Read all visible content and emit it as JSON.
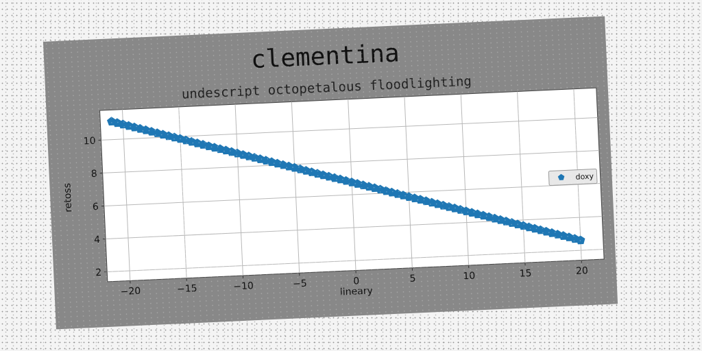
{
  "chart_data": {
    "type": "scatter",
    "title": "clementina",
    "subtitle": "undescript octopetalous floodlighting",
    "xlabel": "lineary",
    "ylabel": "retoss",
    "xlim": [
      -22,
      22
    ],
    "ylim": [
      1.4,
      11.8
    ],
    "xticks": [
      -20,
      -15,
      -10,
      -5,
      0,
      5,
      10,
      15,
      20
    ],
    "yticks": [
      2,
      4,
      6,
      8,
      10
    ],
    "grid": true,
    "legend_position": "center-right",
    "series": [
      {
        "name": "doxy",
        "color": "#1f77b4",
        "marker": "pentagon",
        "x": [
          -21.0,
          -20.0,
          -19.0,
          -18.0,
          -17.0,
          -16.0,
          -15.0,
          -14.0,
          -13.0,
          -12.0,
          -11.0,
          -10.0,
          -9.0,
          -8.0,
          -7.0,
          -6.0,
          -5.0,
          -4.0,
          -3.0,
          -2.0,
          -1.0,
          0.0,
          1.0,
          2.0,
          3.0,
          4.0,
          5.0,
          6.0,
          7.0,
          8.0,
          9.0,
          10.0,
          11.0,
          12.0,
          13.0,
          14.0,
          15.0,
          16.0,
          17.0,
          18.0,
          19.0,
          20.0
        ],
        "y": [
          11.1,
          10.89,
          10.68,
          10.48,
          10.27,
          10.06,
          9.86,
          9.65,
          9.44,
          9.23,
          9.03,
          8.82,
          8.61,
          8.41,
          8.2,
          7.99,
          7.79,
          7.58,
          7.37,
          7.16,
          6.96,
          6.75,
          6.54,
          6.34,
          6.13,
          5.92,
          5.71,
          5.51,
          5.3,
          5.09,
          4.89,
          4.68,
          4.47,
          4.27,
          4.06,
          3.85,
          3.64,
          3.44,
          3.23,
          3.02,
          2.82,
          2.61
        ]
      }
    ]
  }
}
